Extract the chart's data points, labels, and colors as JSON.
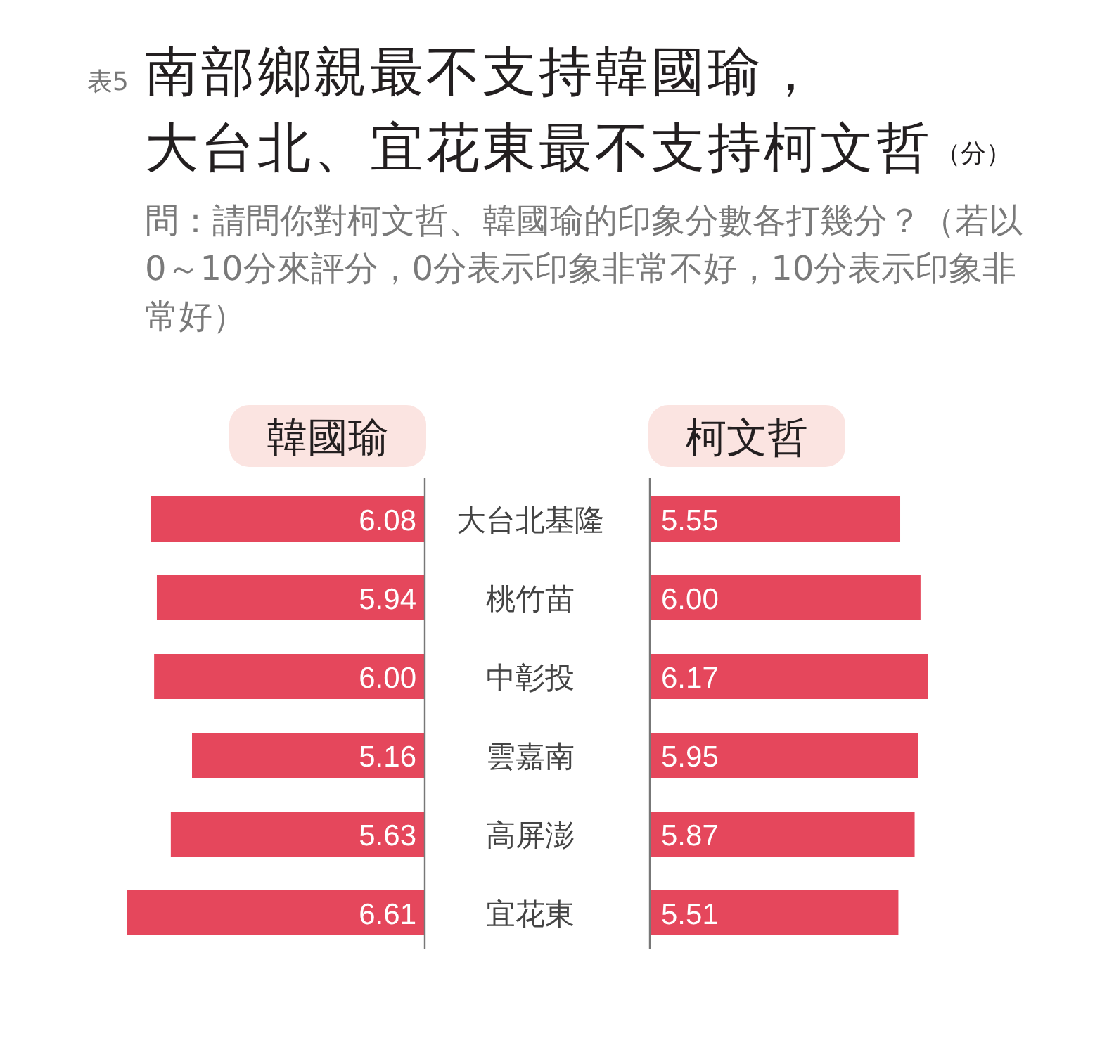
{
  "chart_data": [
    {
      "type": "other",
      "title": "南部鄉親最不支持韓國瑜，大台北、宜花東最不支持柯文哲",
      "subtitle": "問：請問你對柯文哲、韓國瑜的印象分數各打幾分？（若以0～10分來評分，0分表示印象非常不好，10分表示印象非常好）",
      "annotations": [
        "表5",
        "（分）"
      ]
    },
    {
      "type": "bar",
      "orientation": "horizontal",
      "title": "韓國瑜",
      "categories": [
        "大台北基隆",
        "桃竹苗",
        "中彰投",
        "雲嘉南",
        "高屏澎",
        "宜花東"
      ],
      "color": "#e5475c",
      "values": [
        6.08,
        5.94,
        6.0,
        5.16,
        5.63,
        6.61
      ],
      "value_labels": [
        "6.08",
        "5.94",
        "6.00",
        "5.16",
        "5.63",
        "6.61"
      ]
    },
    {
      "type": "bar",
      "orientation": "horizontal",
      "title": "柯文哲",
      "categories": [
        null,
        null,
        null,
        null,
        null,
        null
      ],
      "color": "#e5475c",
      "values": [
        5.55,
        6.0,
        6.17,
        5.95,
        5.87,
        5.51
      ],
      "value_labels": [
        "5.55",
        "6.00",
        "6.17",
        "5.95",
        "5.87",
        "5.51"
      ]
    }
  ]
}
